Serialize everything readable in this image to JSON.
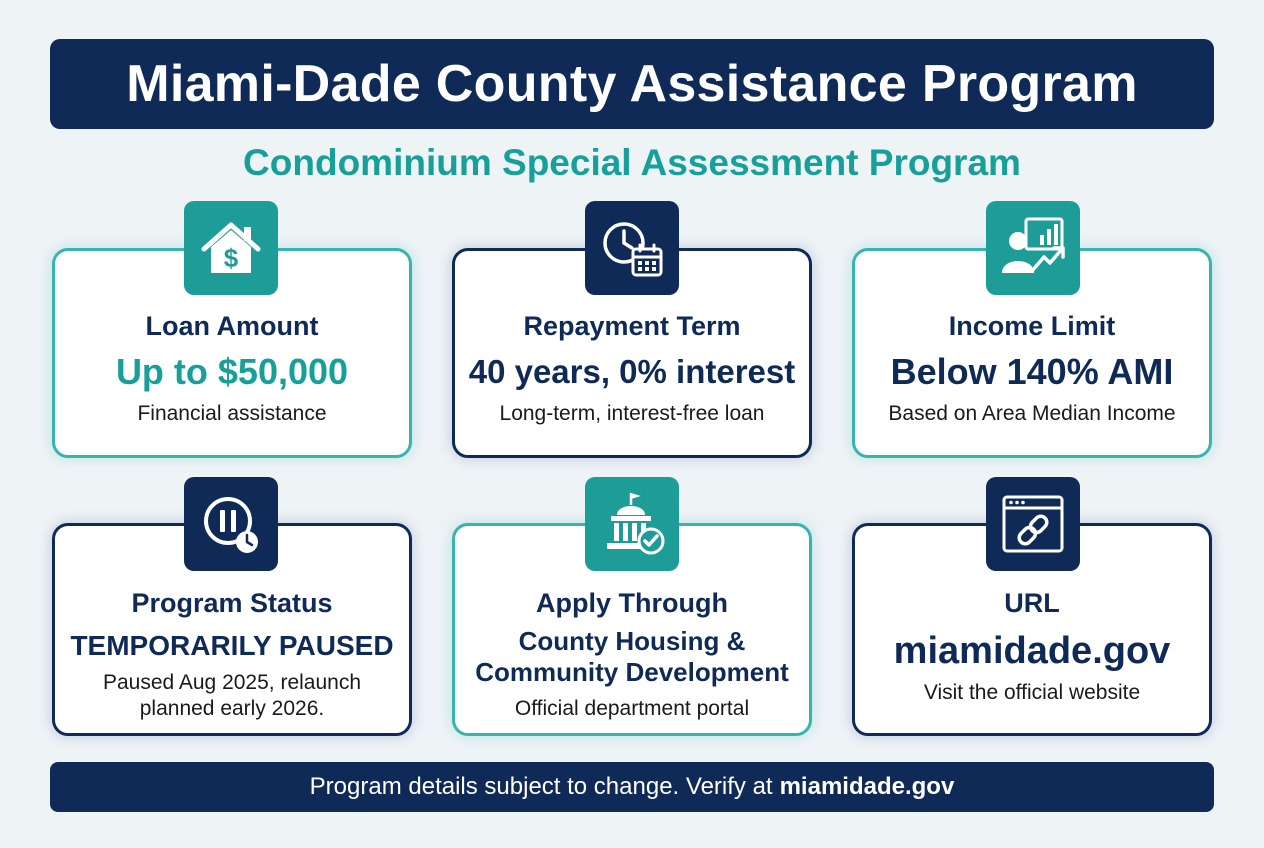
{
  "header": {
    "title": "Miami-Dade County Assistance Program"
  },
  "subtitle": "Condominium Special Assessment Program",
  "colors": {
    "navy": "#0f2a57",
    "teal": "#1d9c98",
    "teal_text": "#17a09a",
    "background": "#eef3f6"
  },
  "cards": [
    {
      "icon": "house-dollar-icon",
      "title": "Loan Amount",
      "value": "Up to $50,000",
      "desc": "Financial assistance"
    },
    {
      "icon": "clock-calendar-icon",
      "title": "Repayment Term",
      "value": "40 years, 0% interest",
      "desc": "Long-term, interest-free loan"
    },
    {
      "icon": "person-chart-icon",
      "title": "Income Limit",
      "value": "Below 140% AMI",
      "desc": "Based on Area Median Income"
    },
    {
      "icon": "pause-clock-icon",
      "title": "Program Status",
      "value": "TEMPORARILY PAUSED",
      "desc_line1": "Paused Aug 2025, relaunch",
      "desc_line2": "planned early 2026."
    },
    {
      "icon": "government-building-check-icon",
      "title": "Apply Through",
      "value_line1": "County Housing &",
      "value_line2": "Community Development",
      "desc": "Official department portal"
    },
    {
      "icon": "browser-link-icon",
      "title": "URL",
      "value": "miamidade.gov",
      "desc": "Visit the official website"
    }
  ],
  "footer": {
    "text": "Program details subject to change. Verify at",
    "link": "miamidade.gov"
  }
}
